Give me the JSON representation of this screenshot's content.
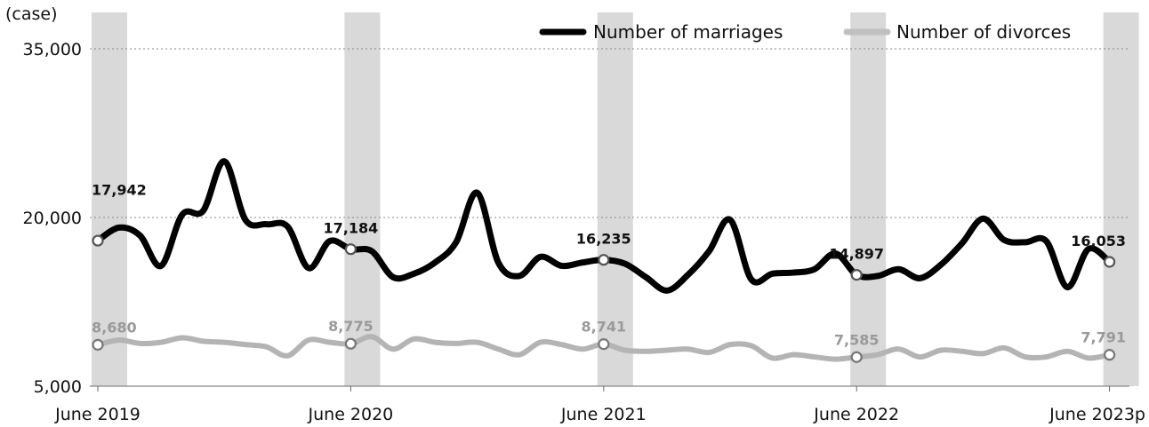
{
  "chart_data": {
    "type": "line",
    "unit_label": "(case)",
    "y_ticks": [
      "35,000",
      "20,000",
      "5,000"
    ],
    "ylim": [
      5000,
      35000
    ],
    "grid": "horizontal-dotted",
    "legend_position": "top-right",
    "x_tick_labels": [
      "June 2019",
      "June 2020",
      "June 2021",
      "June 2022",
      "June 2023p"
    ],
    "x_tick_index": [
      0,
      12,
      24,
      36,
      48
    ],
    "highlight_months": [
      0,
      12,
      24,
      36,
      48
    ],
    "series": [
      {
        "name": "Number of marriages",
        "color": "#000000",
        "values": [
          17942,
          19100,
          18400,
          15700,
          20250,
          20600,
          25000,
          19800,
          19400,
          19200,
          15500,
          17900,
          17184,
          17000,
          14700,
          15000,
          16000,
          17800,
          22200,
          16000,
          14800,
          16500,
          15700,
          16000,
          16235,
          15900,
          14700,
          13500,
          14900,
          17000,
          19800,
          14500,
          15000,
          15100,
          15400,
          16800,
          14897,
          14800,
          15400,
          14600,
          15800,
          17700,
          19900,
          18000,
          17800,
          17900,
          13800,
          17200,
          16053
        ],
        "labels": [
          {
            "index": 0,
            "text": "17,942"
          },
          {
            "index": 12,
            "text": "17,184"
          },
          {
            "index": 24,
            "text": "16,235"
          },
          {
            "index": 36,
            "text": "14,897"
          },
          {
            "index": 48,
            "text": "16,053"
          }
        ]
      },
      {
        "name": "Number of divorces",
        "color": "#b4b4b4",
        "values": [
          8680,
          9100,
          8800,
          8900,
          9300,
          9000,
          8900,
          8700,
          8500,
          7700,
          9100,
          8900,
          8775,
          9400,
          8300,
          9200,
          8900,
          8800,
          8900,
          8300,
          7800,
          8900,
          8700,
          8300,
          8741,
          8200,
          8100,
          8200,
          8300,
          8000,
          8700,
          8600,
          7500,
          7800,
          7600,
          7400,
          7585,
          7800,
          8300,
          7600,
          8200,
          8100,
          7900,
          8400,
          7600,
          7600,
          8100,
          7500,
          7791
        ],
        "labels": [
          {
            "index": 0,
            "text": "8,680"
          },
          {
            "index": 12,
            "text": "8,775"
          },
          {
            "index": 24,
            "text": "8,741"
          },
          {
            "index": 36,
            "text": "7,585"
          },
          {
            "index": 48,
            "text": "7,791"
          }
        ]
      }
    ]
  }
}
